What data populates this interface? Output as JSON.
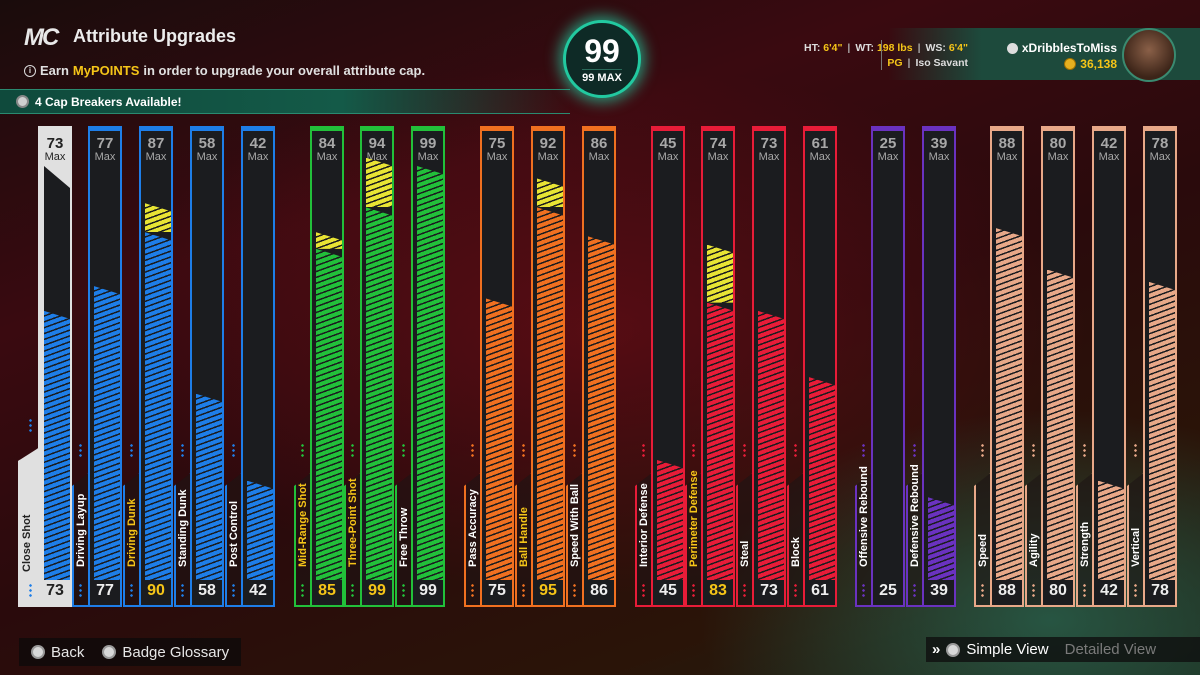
{
  "header": {
    "logo": "MC",
    "title": "Attribute Upgrades",
    "info_prefix": "Earn ",
    "info_highlight": "MyPOINTS",
    "info_suffix": " in order to upgrade your overall attribute cap.",
    "cap_breakers": "4 Cap Breakers Available!"
  },
  "overall": {
    "value": "99",
    "max_label": "99 MAX"
  },
  "player": {
    "ht_label": "HT: ",
    "ht": "6'4\"",
    "wt_label": "WT: ",
    "wt": "198 lbs",
    "ws_label": "WS: ",
    "ws": "6'4\"",
    "position": "PG",
    "archetype": "Iso Savant"
  },
  "user": {
    "name": "xDribblesToMiss",
    "vc": "36,138"
  },
  "attributes": [
    {
      "name": "Close Shot",
      "max": "73",
      "current": "73",
      "cur_pct": 65,
      "up_pct": 0,
      "group": "finishing",
      "selected": true,
      "highlight": false
    },
    {
      "name": "Driving Layup",
      "max": "77",
      "current": "77",
      "cur_pct": 71,
      "up_pct": 0,
      "group": "finishing",
      "highlight": false
    },
    {
      "name": "Driving Dunk",
      "max": "87",
      "current": "90",
      "cur_pct": 84,
      "up_pct": 5,
      "group": "finishing",
      "highlight": true
    },
    {
      "name": "Standing Dunk",
      "max": "58",
      "current": "58",
      "cur_pct": 45,
      "up_pct": 0,
      "group": "finishing",
      "highlight": false
    },
    {
      "name": "Post Control",
      "max": "42",
      "current": "42",
      "cur_pct": 24,
      "up_pct": 0,
      "group": "finishing",
      "highlight": false
    },
    {
      "name": "Mid-Range Shot",
      "max": "84",
      "current": "85",
      "cur_pct": 80,
      "up_pct": 2,
      "group": "shooting",
      "highlight": true
    },
    {
      "name": "Three-Point Shot",
      "max": "94",
      "current": "99",
      "cur_pct": 90,
      "up_pct": 10,
      "group": "shooting",
      "highlight": true
    },
    {
      "name": "Free Throw",
      "max": "99",
      "current": "99",
      "cur_pct": 100,
      "up_pct": 0,
      "group": "shooting",
      "highlight": false
    },
    {
      "name": "Pass Accuracy",
      "max": "75",
      "current": "75",
      "cur_pct": 68,
      "up_pct": 0,
      "group": "playmaking",
      "highlight": false
    },
    {
      "name": "Ball Handle",
      "max": "92",
      "current": "95",
      "cur_pct": 90,
      "up_pct": 5,
      "group": "playmaking",
      "highlight": true
    },
    {
      "name": "Speed With Ball",
      "max": "86",
      "current": "86",
      "cur_pct": 83,
      "up_pct": 0,
      "group": "playmaking",
      "highlight": false
    },
    {
      "name": "Interior Defense",
      "max": "45",
      "current": "45",
      "cur_pct": 29,
      "up_pct": 0,
      "group": "defense",
      "highlight": false
    },
    {
      "name": "Perimeter Defense",
      "max": "74",
      "current": "83",
      "cur_pct": 67,
      "up_pct": 12,
      "group": "defense",
      "highlight": true
    },
    {
      "name": "Steal",
      "max": "73",
      "current": "73",
      "cur_pct": 65,
      "up_pct": 0,
      "group": "defense",
      "highlight": false
    },
    {
      "name": "Block",
      "max": "61",
      "current": "61",
      "cur_pct": 49,
      "up_pct": 0,
      "group": "defense",
      "highlight": false
    },
    {
      "name": "Offensive Rebound",
      "max": "25",
      "current": "25",
      "cur_pct": 0,
      "up_pct": 0,
      "group": "rebounding",
      "highlight": false
    },
    {
      "name": "Defensive Rebound",
      "max": "39",
      "current": "39",
      "cur_pct": 20,
      "up_pct": 0,
      "group": "rebounding",
      "highlight": false
    },
    {
      "name": "Speed",
      "max": "88",
      "current": "88",
      "cur_pct": 85,
      "up_pct": 0,
      "group": "physicals",
      "highlight": false
    },
    {
      "name": "Agility",
      "max": "80",
      "current": "80",
      "cur_pct": 75,
      "up_pct": 0,
      "group": "physicals",
      "highlight": false
    },
    {
      "name": "Strength",
      "max": "42",
      "current": "42",
      "cur_pct": 24,
      "up_pct": 0,
      "group": "physicals",
      "highlight": false
    },
    {
      "name": "Vertical",
      "max": "78",
      "current": "78",
      "cur_pct": 72,
      "up_pct": 0,
      "group": "physicals",
      "highlight": false
    }
  ],
  "max_label": "Max",
  "colors": {
    "finishing": "#1e7ee8",
    "shooting": "#22c03a",
    "playmaking": "#f07020",
    "defense": "#e81c38",
    "rebounding": "#6a32c0",
    "physicals": "#e8a888",
    "upgrade": "#e8e434",
    "highlight_text": "#f5c518",
    "accent": "#22c9a0"
  },
  "footer": {
    "back": "Back",
    "badge_glossary": "Badge Glossary",
    "simple_view": "Simple View",
    "detailed_view": "Detailed View"
  }
}
